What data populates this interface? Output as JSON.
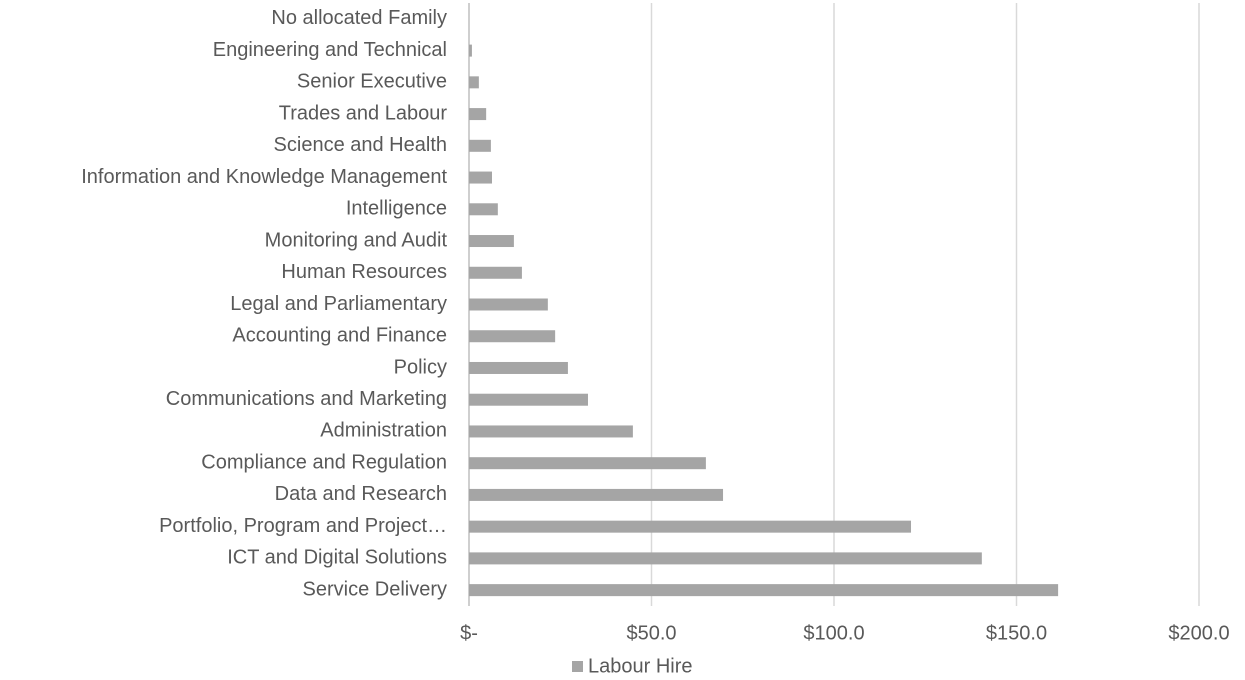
{
  "chart_data": {
    "type": "bar",
    "orientation": "horizontal",
    "categories": [
      "No allocated Family",
      "Engineering and Technical",
      "Senior Executive",
      "Trades and Labour",
      "Science and Health",
      "Information and Knowledge Management",
      "Intelligence",
      "Monitoring and Audit",
      "Human Resources",
      "Legal and Parliamentary",
      "Accounting and Finance",
      "Policy",
      "Communications and Marketing",
      "Administration",
      "Compliance and Regulation",
      "Data and Research",
      "Portfolio, Program and Project…",
      "ICT and Digital Solutions",
      "Service Delivery"
    ],
    "series": [
      {
        "name": "Labour Hire",
        "color": "#a5a5a5",
        "values": [
          0,
          0.8,
          2.7,
          4.7,
          6.0,
          6.3,
          7.9,
          12.3,
          14.5,
          21.6,
          23.6,
          27.1,
          32.6,
          44.9,
          64.9,
          69.6,
          121.1,
          140.5,
          161.4
        ]
      }
    ],
    "xlim": [
      0,
      200
    ],
    "xticks": [
      {
        "value": 0,
        "label": "$-"
      },
      {
        "value": 50,
        "label": "$50.0"
      },
      {
        "value": 100,
        "label": "$100.0"
      },
      {
        "value": 150,
        "label": "$150.0"
      },
      {
        "value": 200,
        "label": "$200.0"
      }
    ],
    "grid": true,
    "legend": "bottom"
  }
}
